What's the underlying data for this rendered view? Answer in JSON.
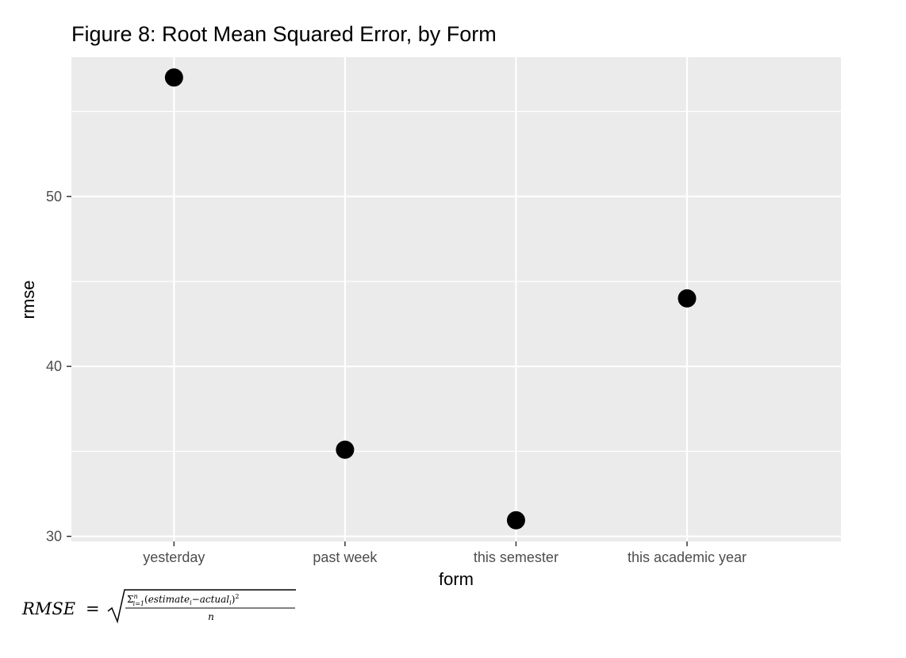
{
  "chart_data": {
    "type": "scatter",
    "title": "Figure 8: Root Mean Squared Error, by Form",
    "xlabel": "form",
    "ylabel": "rmse",
    "categories": [
      "yesterday",
      "past week",
      "this semester",
      "this academic year"
    ],
    "series": [
      {
        "values": [
          57.0,
          35.1,
          30.95,
          44.0
        ]
      }
    ],
    "yticks": [
      "30",
      "40",
      "50"
    ],
    "ytick_values": [
      30,
      40,
      50
    ],
    "ylim": [
      29.7,
      58.2
    ],
    "grid": true,
    "point_color": "#000000",
    "panel_color": "#ebebeb",
    "grid_color": "#ffffff"
  },
  "footnote": {
    "lhs": "RMSE",
    "equals": "=",
    "numerator_main": "Σ",
    "numerator_sup": "n",
    "numerator_sub": "i=1",
    "numerator_open": "(",
    "estimate": "estimate",
    "index_i": "i",
    "minus": "−",
    "actual": "actual",
    "numerator_close": ")",
    "power": "2",
    "denominator": "n"
  }
}
